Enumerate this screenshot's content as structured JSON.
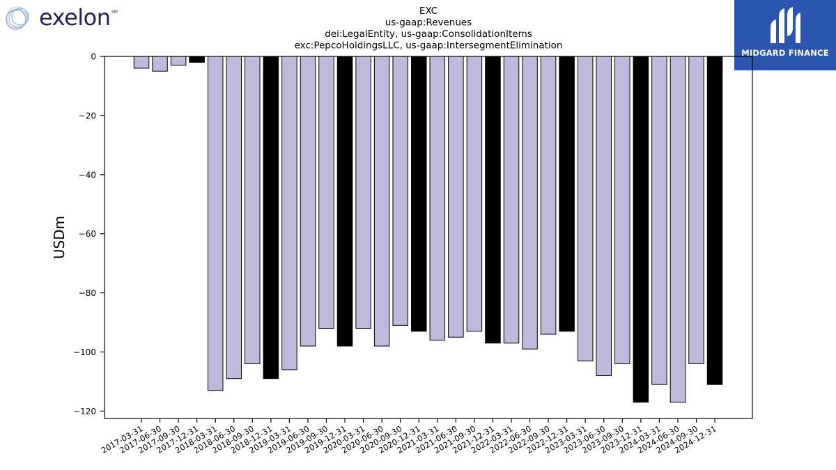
{
  "branding": {
    "company_logo": "exelon",
    "company_logo_mark": "SM",
    "partner_logo": "MIDGARD FINANCE"
  },
  "colors": {
    "bar_default": "#bfbadb",
    "bar_highlight": "#000000",
    "partner_bg": "#2a56b0",
    "brand_text": "#2a1a5e"
  },
  "chart_data": {
    "type": "bar",
    "title_lines": [
      "EXC",
      "us-gaap:Revenues",
      "dei:LegalEntity, us-gaap:ConsolidationItems",
      "exc:PepcoHoldingsLLC, us-gaap:IntersegmentElimination"
    ],
    "xlabel": "",
    "ylabel": "USDm",
    "ylim": [
      -122.5,
      0
    ],
    "yticks": [
      0,
      -20,
      -40,
      -60,
      -80,
      -100,
      -120
    ],
    "grid": false,
    "legend": "none",
    "categories": [
      "2017-03-31",
      "2017-06-30",
      "2017-09-30",
      "2017-12-31",
      "2018-03-31",
      "2018-06-30",
      "2018-09-30",
      "2018-12-31",
      "2019-03-31",
      "2019-06-30",
      "2019-09-30",
      "2019-12-31",
      "2020-03-31",
      "2020-06-30",
      "2020-09-30",
      "2020-12-31",
      "2021-03-31",
      "2021-06-30",
      "2021-09-30",
      "2021-12-31",
      "2022-03-31",
      "2022-06-30",
      "2022-09-30",
      "2022-12-31",
      "2023-03-31",
      "2023-06-30",
      "2023-09-30",
      "2023-12-31",
      "2024-03-31",
      "2024-06-30",
      "2024-09-30",
      "2024-12-31"
    ],
    "values": [
      -4,
      -5,
      -3,
      -2,
      -113,
      -109,
      -104,
      -109,
      -106,
      -98,
      -92,
      -98,
      -92,
      -98,
      -91,
      -93,
      -96,
      -95,
      -93,
      -97,
      -97,
      -99,
      -94,
      -93,
      -103,
      -108,
      -104,
      -117,
      -111,
      -117,
      -104,
      -111
    ],
    "highlight_categories": [
      "2017-12-31",
      "2018-12-31",
      "2019-12-31",
      "2020-12-31",
      "2021-12-31",
      "2022-12-31",
      "2023-12-31",
      "2024-12-31"
    ]
  }
}
